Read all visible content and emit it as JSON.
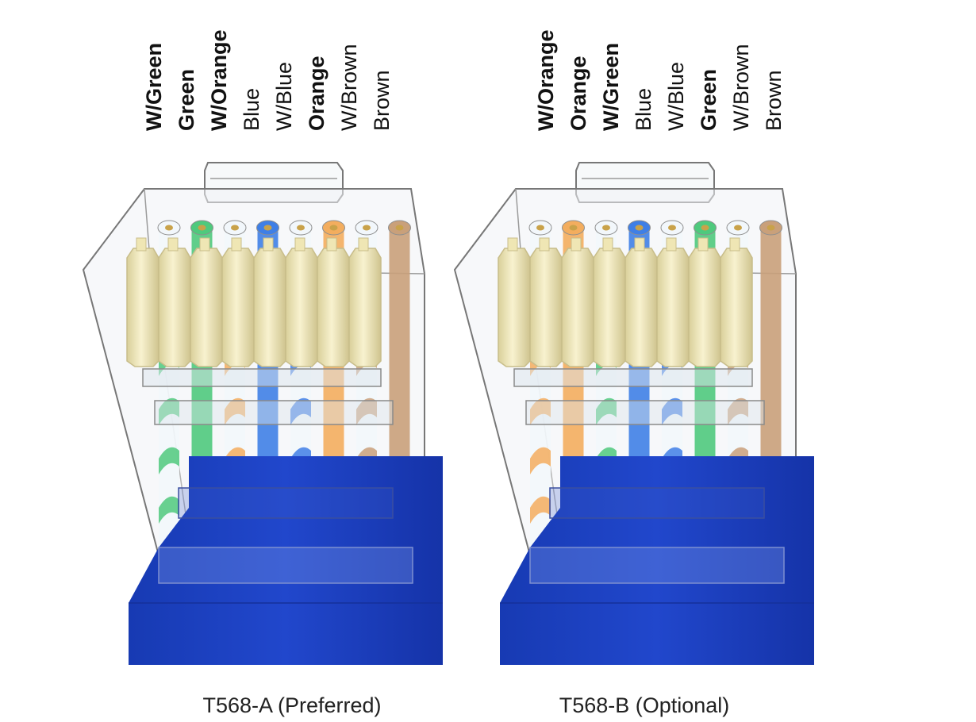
{
  "colors": {
    "white": "#f2f7fb",
    "green": "#4fc97d",
    "orange": "#f3ad5e",
    "blue": "#3f7fe6",
    "brown": "#c9a07a",
    "boot": "#1c3fbf",
    "boot_dark": "#15309a",
    "contact": "#f3ecbf",
    "contact_edge": "#c8bd8a",
    "plastic_edge": "#777777"
  },
  "connectors": [
    {
      "caption": "T568-A (Preferred)",
      "pins": [
        {
          "label": "W/Green",
          "bold": true,
          "base": "white",
          "stripe": "green"
        },
        {
          "label": "Green",
          "bold": true,
          "base": "green",
          "stripe": "green"
        },
        {
          "label": "W/Orange",
          "bold": true,
          "base": "white",
          "stripe": "orange"
        },
        {
          "label": "Blue",
          "bold": false,
          "base": "blue",
          "stripe": "blue"
        },
        {
          "label": "W/Blue",
          "bold": false,
          "base": "white",
          "stripe": "blue"
        },
        {
          "label": "Orange",
          "bold": true,
          "base": "orange",
          "stripe": "orange"
        },
        {
          "label": "W/Brown",
          "bold": false,
          "base": "white",
          "stripe": "brown"
        },
        {
          "label": "Brown",
          "bold": false,
          "base": "brown",
          "stripe": "brown"
        }
      ]
    },
    {
      "caption": "T568-B (Optional)",
      "pins": [
        {
          "label": "W/Orange",
          "bold": true,
          "base": "white",
          "stripe": "orange"
        },
        {
          "label": "Orange",
          "bold": true,
          "base": "orange",
          "stripe": "orange"
        },
        {
          "label": "W/Green",
          "bold": true,
          "base": "white",
          "stripe": "green"
        },
        {
          "label": "Blue",
          "bold": false,
          "base": "blue",
          "stripe": "blue"
        },
        {
          "label": "W/Blue",
          "bold": false,
          "base": "white",
          "stripe": "blue"
        },
        {
          "label": "Green",
          "bold": true,
          "base": "green",
          "stripe": "green"
        },
        {
          "label": "W/Brown",
          "bold": false,
          "base": "white",
          "stripe": "brown"
        },
        {
          "label": "Brown",
          "bold": false,
          "base": "brown",
          "stripe": "brown"
        }
      ]
    }
  ]
}
